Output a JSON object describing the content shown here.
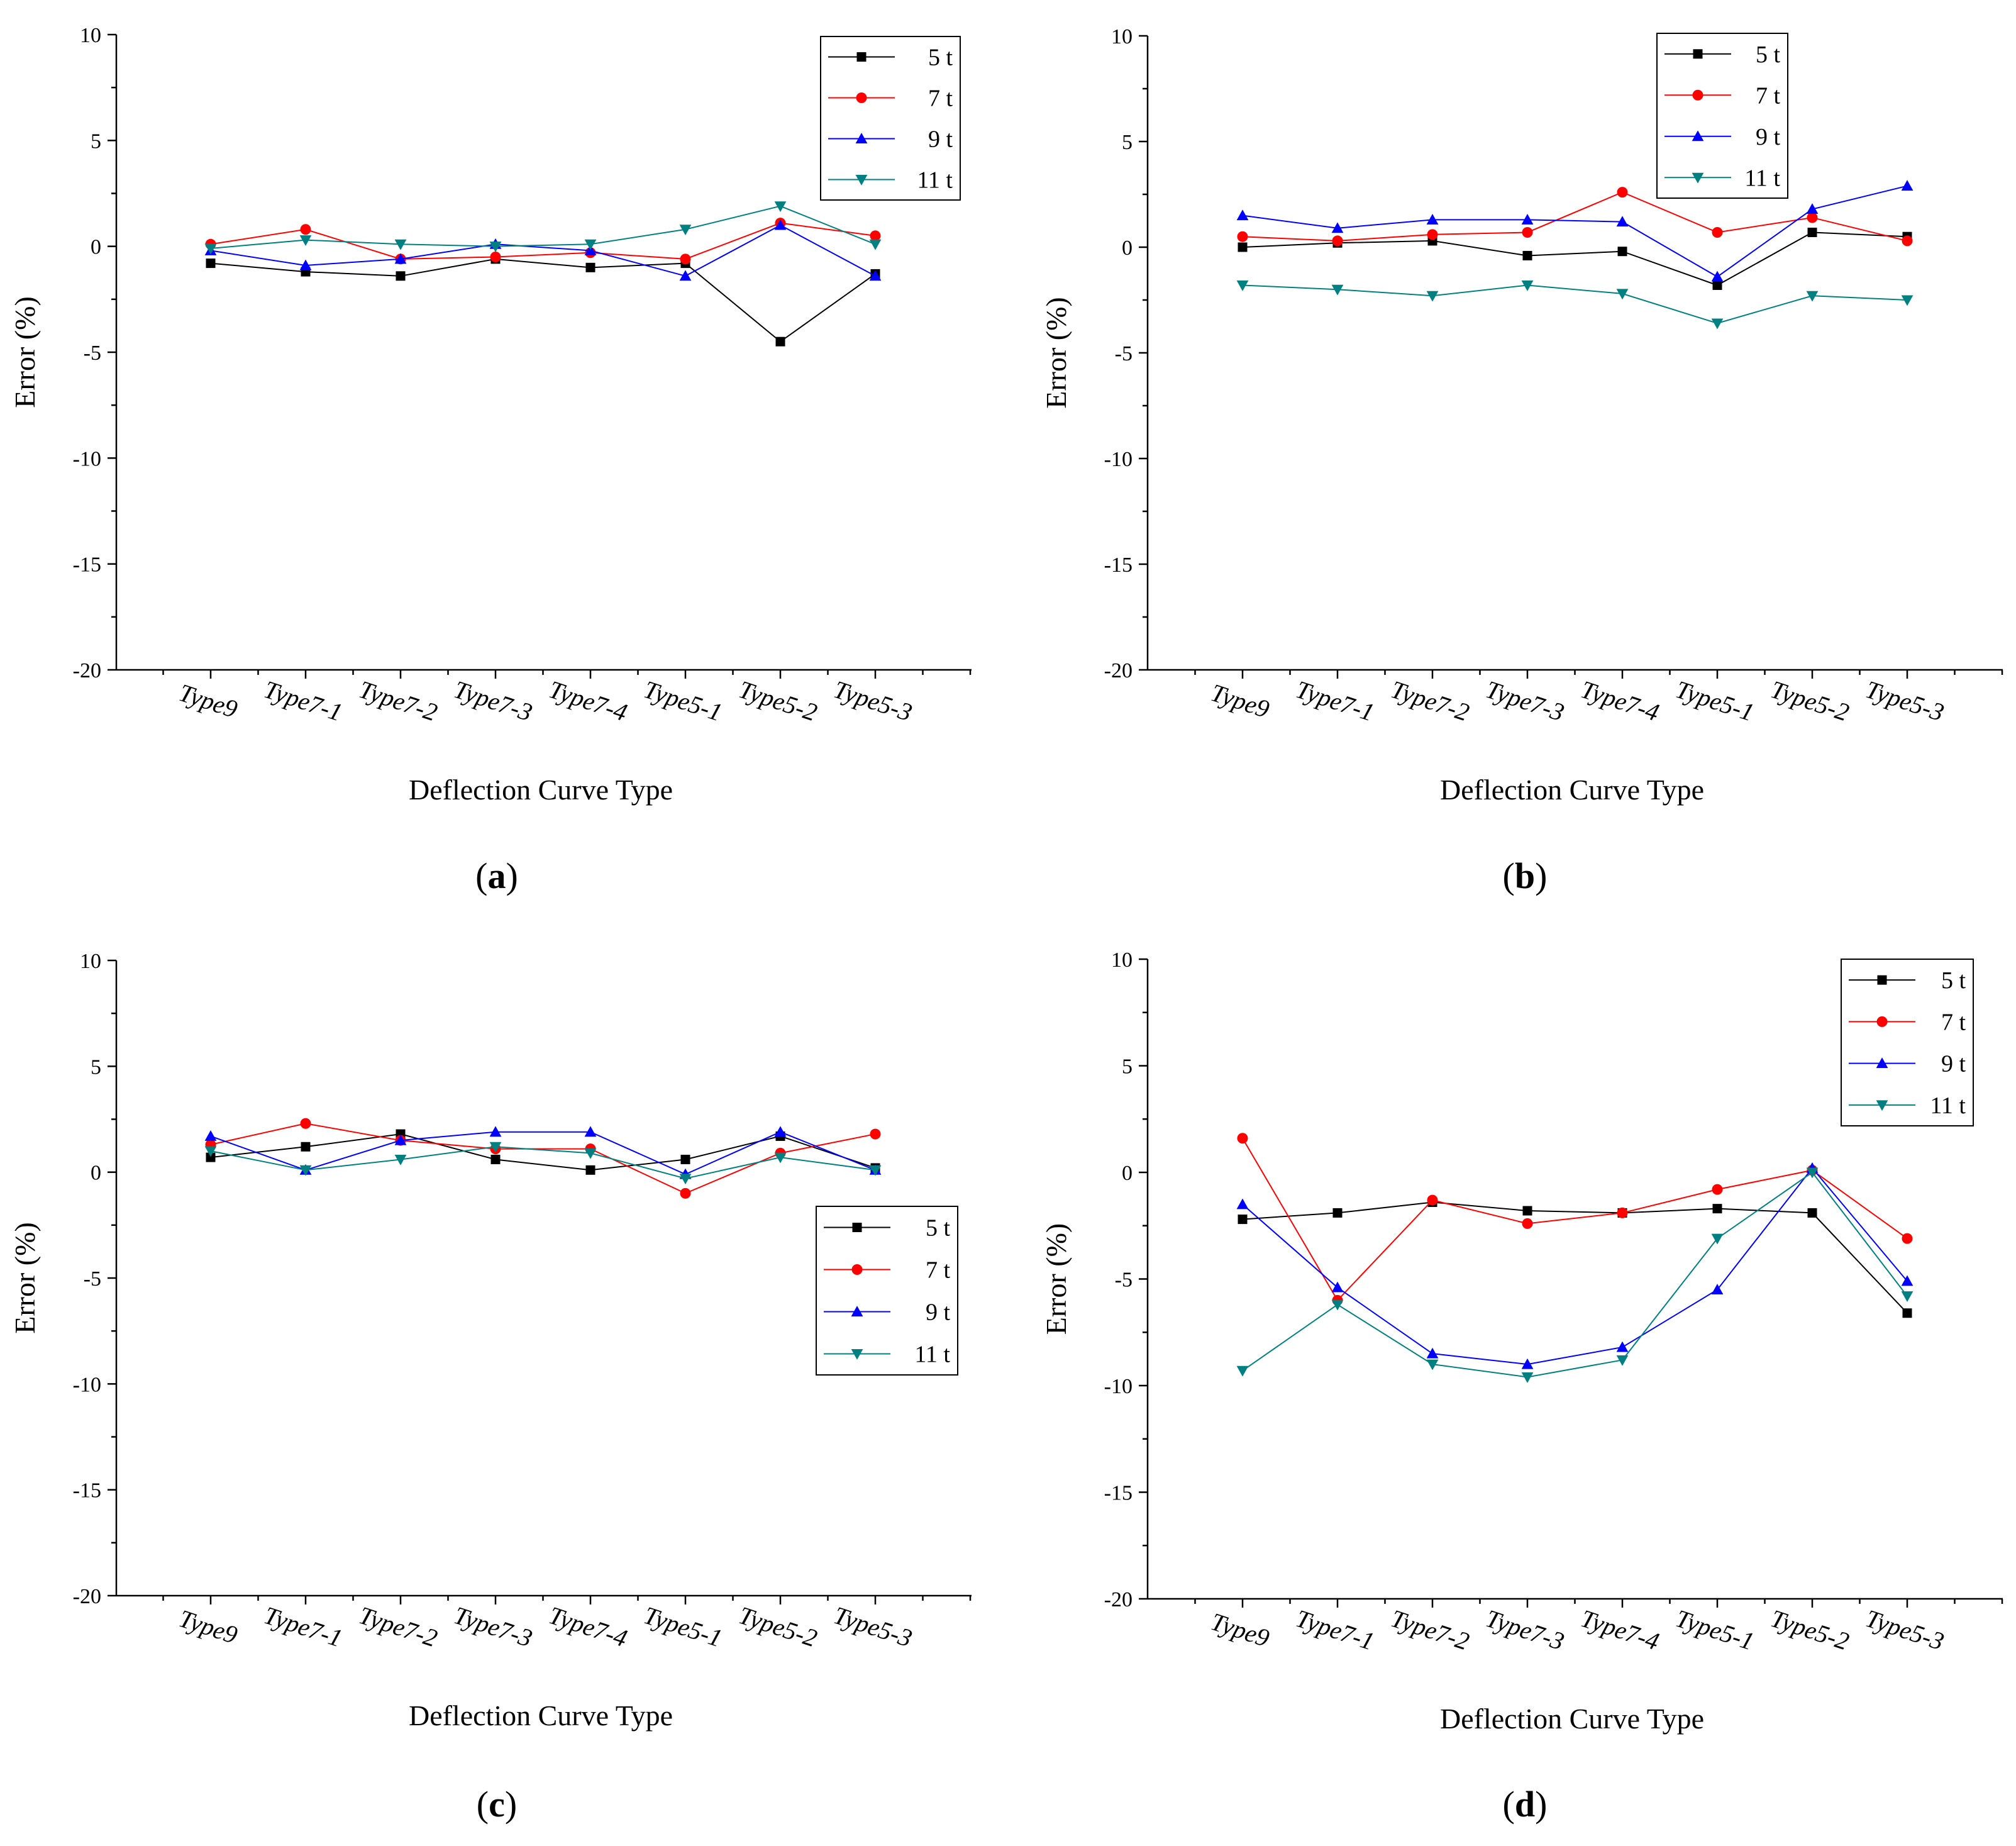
{
  "figure": {
    "panels": [
      {
        "id": "a",
        "label_open": "(",
        "letter": "a",
        "label_close": ")"
      },
      {
        "id": "b",
        "label_open": "(",
        "letter": "b",
        "label_close": ")"
      },
      {
        "id": "c",
        "label_open": "(",
        "letter": "c",
        "label_close": ")"
      },
      {
        "id": "d",
        "label_open": "(",
        "letter": "d",
        "label_close": ")"
      }
    ]
  },
  "chart_data": [
    {
      "type": "line",
      "panel": "a",
      "xlabel": "Deflection Curve Type",
      "ylabel": "Error (%)",
      "ylim": [
        -20,
        10
      ],
      "yticks": [
        "10",
        "5",
        "0",
        "-5",
        "-10",
        "-15",
        "-20"
      ],
      "legend_position": "top-right",
      "categories": [
        "Type9",
        "Type7-1",
        "Type7-2",
        "Type7-3",
        "Type7-4",
        "Type5-1",
        "Type5-2",
        "Type5-3"
      ],
      "series": [
        {
          "name": "5 t",
          "color": "#000000",
          "marker": "square",
          "values": [
            -0.8,
            -1.2,
            -1.4,
            -0.6,
            -1.0,
            -0.8,
            -4.5,
            -1.3
          ]
        },
        {
          "name": "7 t",
          "color": "#ff0000",
          "marker": "circle",
          "values": [
            0.1,
            0.8,
            -0.6,
            -0.5,
            -0.3,
            -0.6,
            1.1,
            0.5
          ]
        },
        {
          "name": "9 t",
          "color": "#0000ff",
          "marker": "triangle-up",
          "values": [
            -0.2,
            -0.9,
            -0.6,
            0.1,
            -0.2,
            -1.4,
            1.0,
            -1.4
          ]
        },
        {
          "name": "11 t",
          "color": "#008080",
          "marker": "triangle-down",
          "values": [
            -0.1,
            0.3,
            0.1,
            0.0,
            0.1,
            0.8,
            1.9,
            0.1
          ]
        }
      ]
    },
    {
      "type": "line",
      "panel": "b",
      "xlabel": "Deflection Curve Type",
      "ylabel": "Error (%)",
      "ylim": [
        -20,
        10
      ],
      "yticks": [
        "10",
        "5",
        "0",
        "-5",
        "-10",
        "-15",
        "-20"
      ],
      "legend_position": "top-right",
      "categories": [
        "Type9",
        "Type7-1",
        "Type7-2",
        "Type7-3",
        "Type7-4",
        "Type5-1",
        "Type5-2",
        "Type5-3"
      ],
      "series": [
        {
          "name": "5 t",
          "color": "#000000",
          "marker": "square",
          "values": [
            0.0,
            0.2,
            0.3,
            -0.4,
            -0.2,
            -1.8,
            0.7,
            0.5
          ]
        },
        {
          "name": "7 t",
          "color": "#ff0000",
          "marker": "circle",
          "values": [
            0.5,
            0.3,
            0.6,
            0.7,
            2.6,
            0.7,
            1.4,
            0.3
          ]
        },
        {
          "name": "9 t",
          "color": "#0000ff",
          "marker": "triangle-up",
          "values": [
            1.5,
            0.9,
            1.3,
            1.3,
            1.2,
            -1.4,
            1.8,
            2.9
          ]
        },
        {
          "name": "11 t",
          "color": "#008080",
          "marker": "triangle-down",
          "values": [
            -1.8,
            -2.0,
            -2.3,
            -1.8,
            -2.2,
            -3.6,
            -2.3,
            -2.5
          ]
        }
      ]
    },
    {
      "type": "line",
      "panel": "c",
      "xlabel": "Deflection Curve Type",
      "ylabel": "Error (%)",
      "ylim": [
        -20,
        10
      ],
      "yticks": [
        "10",
        "5",
        "0",
        "-5",
        "-10",
        "-15",
        "-20"
      ],
      "legend_position": "center-right",
      "categories": [
        "Type9",
        "Type7-1",
        "Type7-2",
        "Type7-3",
        "Type7-4",
        "Type5-1",
        "Type5-2",
        "Type5-3"
      ],
      "series": [
        {
          "name": "5 t",
          "color": "#000000",
          "marker": "square",
          "values": [
            0.7,
            1.2,
            1.8,
            0.6,
            0.1,
            0.6,
            1.7,
            0.2
          ]
        },
        {
          "name": "7 t",
          "color": "#ff0000",
          "marker": "circle",
          "values": [
            1.3,
            2.3,
            1.5,
            1.1,
            1.1,
            -1.0,
            0.9,
            1.8
          ]
        },
        {
          "name": "9 t",
          "color": "#0000ff",
          "marker": "triangle-up",
          "values": [
            1.7,
            0.1,
            1.5,
            1.9,
            1.9,
            -0.1,
            1.9,
            0.1
          ]
        },
        {
          "name": "11 t",
          "color": "#008080",
          "marker": "triangle-down",
          "values": [
            1.0,
            0.1,
            0.6,
            1.2,
            0.9,
            -0.3,
            0.7,
            0.1
          ]
        }
      ]
    },
    {
      "type": "line",
      "panel": "d",
      "xlabel": "Deflection Curve Type",
      "ylabel": "Error (%)",
      "ylim": [
        -20,
        10
      ],
      "yticks": [
        "10",
        "5",
        "0",
        "-5",
        "-10",
        "-15",
        "-20"
      ],
      "legend_position": "top-right",
      "categories": [
        "Type9",
        "Type7-1",
        "Type7-2",
        "Type7-3",
        "Type7-4",
        "Type5-1",
        "Type5-2",
        "Type5-3"
      ],
      "series": [
        {
          "name": "5 t",
          "color": "#000000",
          "marker": "square",
          "values": [
            -2.2,
            -1.9,
            -1.4,
            -1.8,
            -1.9,
            -1.7,
            -1.9,
            -6.6
          ]
        },
        {
          "name": "7 t",
          "color": "#ff0000",
          "marker": "circle",
          "values": [
            1.6,
            -6.0,
            -1.3,
            -2.4,
            -1.9,
            -0.8,
            0.1,
            -3.1
          ]
        },
        {
          "name": "9 t",
          "color": "#0000ff",
          "marker": "triangle-up",
          "values": [
            -1.5,
            -5.4,
            -8.5,
            -9.0,
            -8.2,
            -5.5,
            0.2,
            -5.1
          ]
        },
        {
          "name": "11 t",
          "color": "#008080",
          "marker": "triangle-down",
          "values": [
            -9.3,
            -6.2,
            -9.0,
            -9.6,
            -8.8,
            -3.1,
            0.0,
            -5.8
          ]
        }
      ]
    }
  ]
}
